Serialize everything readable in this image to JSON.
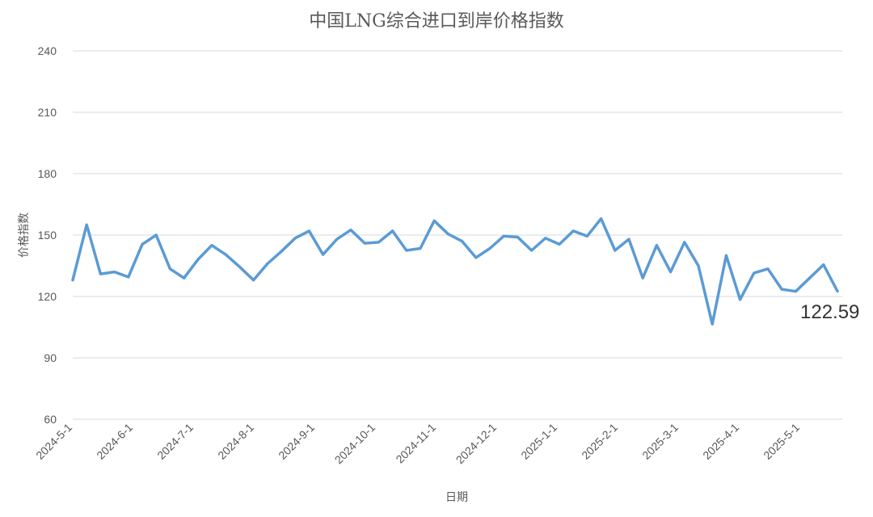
{
  "chart_data": {
    "type": "line",
    "title": "中国LNG综合进口到岸价格指数",
    "xlabel": "日期",
    "ylabel": "价格指数",
    "ylim": [
      60,
      240
    ],
    "yticks": [
      "60",
      "90",
      "120",
      "150",
      "180",
      "210",
      "240"
    ],
    "xtick_labels": [
      "2024-5-1",
      "2024-6-1",
      "2024-7-1",
      "2024-8-1",
      "2024-9-1",
      "2024-10-1",
      "2024-11-1",
      "2024-12-1",
      "2025-1-1",
      "2025-2-1",
      "2025-3-1",
      "2025-4-1",
      "2025-5-1"
    ],
    "grid": true,
    "legend": "none",
    "line_color": "#5b9bd5",
    "last_value_label": "122.59",
    "series": [
      {
        "values": [
          128,
          155,
          131,
          132,
          129.5,
          145.5,
          150,
          133.5,
          129,
          138,
          145,
          140.5,
          134.5,
          128,
          136,
          142,
          148.5,
          152,
          140.5,
          148,
          152.5,
          146,
          146.5,
          152,
          142.5,
          143.5,
          157,
          150.5,
          147,
          139,
          143.5,
          149.5,
          149,
          142.5,
          148.5,
          145.5,
          152,
          149.5,
          158,
          142.5,
          148,
          129,
          145,
          132,
          146.5,
          135,
          106.5,
          140,
          118.5,
          131.5,
          133.5,
          123.5,
          122.5,
          129,
          135.5,
          122.59
        ]
      }
    ]
  }
}
